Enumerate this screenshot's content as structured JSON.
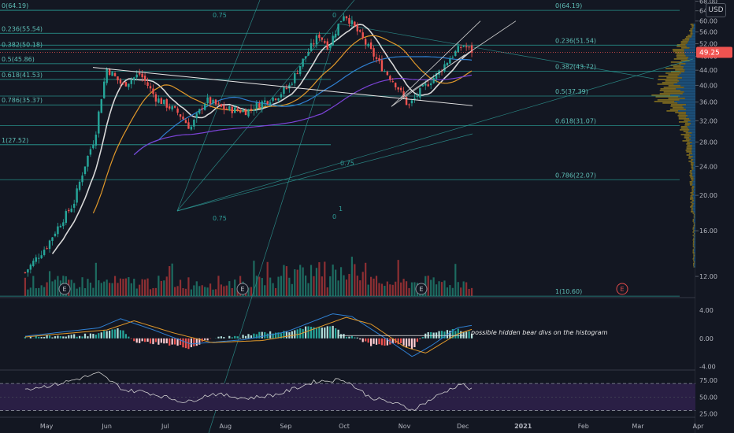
{
  "currency": "USD",
  "current_price_label": "49.25",
  "annotation": "possible hidden bear divs on the histogram",
  "chart_data": [
    {
      "type": "candlestick",
      "panel": "price",
      "scale": "log",
      "ylim": [
        10.5,
        68.5
      ],
      "y_ticks": [
        "68.00",
        "64.00",
        "60.00",
        "56.00",
        "52.00",
        "48.00",
        "44.00",
        "40.00",
        "36.00",
        "32.00",
        "28.00",
        "24.00",
        "20.00",
        "16.00",
        "12.00"
      ],
      "y_tick_values": [
        68,
        64,
        60,
        56,
        52,
        48,
        44,
        40,
        36,
        32,
        28,
        24,
        20,
        16,
        12
      ],
      "x_ticks": [
        "May",
        "Jun",
        "Jul",
        "Aug",
        "Sep",
        "Oct",
        "Nov",
        "Dec",
        "2021",
        "Feb",
        "Mar",
        "Apr"
      ],
      "last_price": 49.25,
      "earnings_markers": [
        "E",
        "E",
        "E",
        "E"
      ],
      "price_anchors": [
        {
          "date": "2020-04-20",
          "price": 12.3
        },
        {
          "date": "2020-05-01",
          "price": 14.5
        },
        {
          "date": "2020-05-15",
          "price": 19.0
        },
        {
          "date": "2020-05-26",
          "price": 29.0
        },
        {
          "date": "2020-06-01",
          "price": 44.5
        },
        {
          "date": "2020-06-09",
          "price": 40.0
        },
        {
          "date": "2020-06-18",
          "price": 43.0
        },
        {
          "date": "2020-06-26",
          "price": 37.0
        },
        {
          "date": "2020-07-08",
          "price": 33.5
        },
        {
          "date": "2020-07-14",
          "price": 30.5
        },
        {
          "date": "2020-07-22",
          "price": 36.5
        },
        {
          "date": "2020-07-31",
          "price": 34.5
        },
        {
          "date": "2020-08-12",
          "price": 34.0
        },
        {
          "date": "2020-08-20",
          "price": 36.0
        },
        {
          "date": "2020-08-28",
          "price": 37.5
        },
        {
          "date": "2020-09-03",
          "price": 40.0
        },
        {
          "date": "2020-09-11",
          "price": 48.0
        },
        {
          "date": "2020-09-18",
          "price": 55.0
        },
        {
          "date": "2020-09-23",
          "price": 51.0
        },
        {
          "date": "2020-10-01",
          "price": 63.0
        },
        {
          "date": "2020-10-06",
          "price": 58.0
        },
        {
          "date": "2020-10-12",
          "price": 52.0
        },
        {
          "date": "2020-10-20",
          "price": 45.0
        },
        {
          "date": "2020-10-28",
          "price": 40.0
        },
        {
          "date": "2020-11-03",
          "price": 35.0
        },
        {
          "date": "2020-11-10",
          "price": 39.0
        },
        {
          "date": "2020-11-18",
          "price": 43.0
        },
        {
          "date": "2020-11-25",
          "price": 48.0
        },
        {
          "date": "2020-12-01",
          "price": 51.5
        },
        {
          "date": "2020-12-07",
          "price": 49.25
        }
      ],
      "fib_levels_left": [
        {
          "label": "0(64.19)",
          "price": 64.19
        },
        {
          "label": "0.236(55.54)",
          "price": 55.54
        },
        {
          "label": "0.382(50.18)",
          "price": 50.18
        },
        {
          "label": "0.5(45.86)",
          "price": 45.86
        },
        {
          "label": "0.618(41.53)",
          "price": 41.53
        },
        {
          "label": "0.786(35.37)",
          "price": 35.37
        },
        {
          "label": "1(27.52)",
          "price": 27.52
        }
      ],
      "fib_levels_right": [
        {
          "label": "0(64.19)",
          "price": 64.19
        },
        {
          "label": "0.236(51.54)",
          "price": 51.54
        },
        {
          "label": "0.382(43.72)",
          "price": 43.72
        },
        {
          "label": "0.5(37.39)",
          "price": 37.39
        },
        {
          "label": "0.618(31.07)",
          "price": 31.07
        },
        {
          "label": "0.786(22.07)",
          "price": 22.07
        },
        {
          "label": "1(10.60)",
          "price": 10.6
        }
      ],
      "fan_labels": [
        "0.75",
        "0",
        "0.75",
        "1",
        "0.75",
        "0"
      ]
    },
    {
      "type": "bar",
      "panel": "macd",
      "ylim": [
        -4.5,
        5.8
      ],
      "y_ticks": [
        "4.00",
        "0.00",
        "-4.00"
      ],
      "y_tick_values": [
        4,
        0,
        -4
      ],
      "series": [
        {
          "values_anchor": [
            {
              "date": "2020-04-20",
              "v": 0.3
            },
            {
              "date": "2020-05-28",
              "v": 1.5
            },
            {
              "date": "2020-06-08",
              "v": 2.8
            },
            {
              "date": "2020-06-25",
              "v": 1.2
            },
            {
              "date": "2020-07-14",
              "v": -0.8
            },
            {
              "date": "2020-08-10",
              "v": -0.2
            },
            {
              "date": "2020-09-01",
              "v": 0.9
            },
            {
              "date": "2020-09-25",
              "v": 3.5
            },
            {
              "date": "2020-10-05",
              "v": 3.1
            },
            {
              "date": "2020-10-25",
              "v": -0.5
            },
            {
              "date": "2020-11-05",
              "v": -2.6
            },
            {
              "date": "2020-11-15",
              "v": -1.0
            },
            {
              "date": "2020-11-28",
              "v": 1.5
            },
            {
              "date": "2020-12-07",
              "v": 1.9
            }
          ]
        },
        {
          "values_anchor": [
            {
              "date": "2020-04-20",
              "v": 0.2
            },
            {
              "date": "2020-06-01",
              "v": 1.2
            },
            {
              "date": "2020-06-15",
              "v": 2.5
            },
            {
              "date": "2020-07-05",
              "v": 0.8
            },
            {
              "date": "2020-07-25",
              "v": -0.6
            },
            {
              "date": "2020-08-20",
              "v": -0.3
            },
            {
              "date": "2020-09-08",
              "v": 0.6
            },
            {
              "date": "2020-10-02",
              "v": 3.0
            },
            {
              "date": "2020-10-15",
              "v": 2.0
            },
            {
              "date": "2020-11-01",
              "v": -1.2
            },
            {
              "date": "2020-11-12",
              "v": -2.1
            },
            {
              "date": "2020-11-28",
              "v": 0.6
            },
            {
              "date": "2020-12-07",
              "v": 1.4
            }
          ]
        }
      ]
    },
    {
      "type": "line",
      "panel": "rsi",
      "ylim": [
        20,
        90
      ],
      "y_ticks": [
        "75.00",
        "50.00",
        "25.00"
      ],
      "y_tick_values": [
        75,
        50,
        25
      ],
      "bands": [
        70,
        30
      ],
      "values_anchor": [
        {
          "date": "2020-04-20",
          "v": 62
        },
        {
          "date": "2020-05-05",
          "v": 68
        },
        {
          "date": "2020-05-28",
          "v": 85
        },
        {
          "date": "2020-06-10",
          "v": 60
        },
        {
          "date": "2020-06-20",
          "v": 58
        },
        {
          "date": "2020-07-12",
          "v": 42
        },
        {
          "date": "2020-07-25",
          "v": 55
        },
        {
          "date": "2020-08-12",
          "v": 48
        },
        {
          "date": "2020-08-28",
          "v": 54
        },
        {
          "date": "2020-09-16",
          "v": 73
        },
        {
          "date": "2020-10-01",
          "v": 76
        },
        {
          "date": "2020-10-14",
          "v": 50
        },
        {
          "date": "2020-10-30",
          "v": 38
        },
        {
          "date": "2020-11-05",
          "v": 31
        },
        {
          "date": "2020-11-20",
          "v": 55
        },
        {
          "date": "2020-11-30",
          "v": 70
        },
        {
          "date": "2020-12-07",
          "v": 58
        }
      ]
    }
  ]
}
